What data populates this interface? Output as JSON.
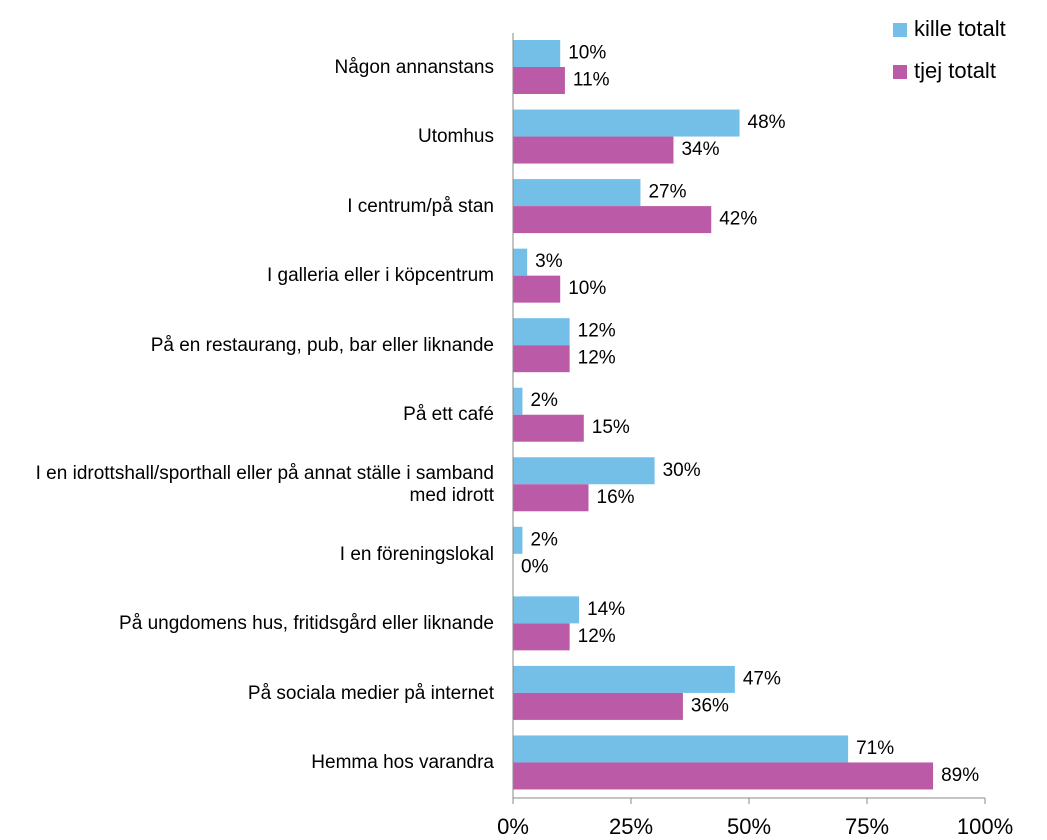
{
  "chart_data": {
    "type": "hbar",
    "categories": [
      "Någon annanstans",
      "Utomhus",
      "I centrum/på stan",
      "I galleria eller i köpcentrum",
      "På en restaurang, pub, bar eller liknande",
      "På ett café",
      "I en idrottshall/sporthall eller på annat ställe i samband med idrott",
      "I en föreningslokal",
      "På ungdomens hus, fritidsgård eller liknande",
      "På sociala medier på internet",
      "Hemma hos varandra"
    ],
    "series": [
      {
        "name": "kille totalt",
        "color": "#74bfe8",
        "values": [
          10,
          48,
          27,
          3,
          12,
          2,
          30,
          2,
          14,
          47,
          71
        ],
        "value_labels": [
          "10%",
          "48%",
          "27%",
          "3%",
          "12%",
          "2%",
          "30%",
          "2%",
          "14%",
          "47%",
          "71%"
        ]
      },
      {
        "name": "tjej totalt",
        "color": "#bb5ba7",
        "values": [
          11,
          34,
          42,
          10,
          12,
          15,
          16,
          0,
          12,
          36,
          89
        ],
        "value_labels": [
          "11%",
          "34%",
          "42%",
          "10%",
          "12%",
          "15%",
          "16%",
          "0%",
          "12%",
          "36%",
          "89%"
        ]
      }
    ],
    "xlim": [
      0,
      100
    ],
    "xticks": [
      {
        "value": 0,
        "label": "0%"
      },
      {
        "value": 25,
        "label": "25%"
      },
      {
        "value": 50,
        "label": "50%"
      },
      {
        "value": 75,
        "label": "75%"
      },
      {
        "value": 100,
        "label": "100%"
      }
    ],
    "legend": "top-right"
  }
}
